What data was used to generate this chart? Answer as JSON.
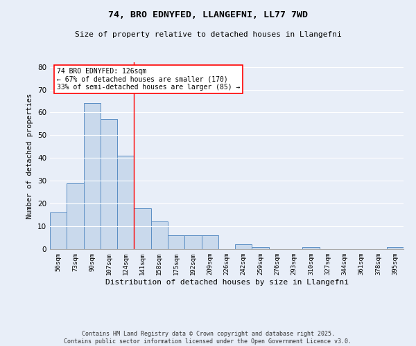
{
  "title1": "74, BRO EDNYFED, LLANGEFNI, LL77 7WD",
  "title2": "Size of property relative to detached houses in Llangefni",
  "xlabel": "Distribution of detached houses by size in Llangefni",
  "ylabel": "Number of detached properties",
  "categories": [
    "56sqm",
    "73sqm",
    "90sqm",
    "107sqm",
    "124sqm",
    "141sqm",
    "158sqm",
    "175sqm",
    "192sqm",
    "209sqm",
    "226sqm",
    "242sqm",
    "259sqm",
    "276sqm",
    "293sqm",
    "310sqm",
    "327sqm",
    "344sqm",
    "361sqm",
    "378sqm",
    "395sqm"
  ],
  "values": [
    16,
    29,
    64,
    57,
    41,
    18,
    12,
    6,
    6,
    6,
    0,
    2,
    1,
    0,
    0,
    1,
    0,
    0,
    0,
    0,
    1
  ],
  "bar_color": "#c9d9ec",
  "bar_edge_color": "#5b8ec4",
  "red_line_x": 4.5,
  "annotation_text": "74 BRO EDNYFED: 126sqm\n← 67% of detached houses are smaller (170)\n33% of semi-detached houses are larger (85) →",
  "annotation_box_color": "white",
  "annotation_box_edge": "red",
  "ylim": [
    0,
    82
  ],
  "yticks": [
    0,
    10,
    20,
    30,
    40,
    50,
    60,
    70,
    80
  ],
  "footer1": "Contains HM Land Registry data © Crown copyright and database right 2025.",
  "footer2": "Contains public sector information licensed under the Open Government Licence v3.0.",
  "background_color": "#e8eef8",
  "grid_color": "white"
}
